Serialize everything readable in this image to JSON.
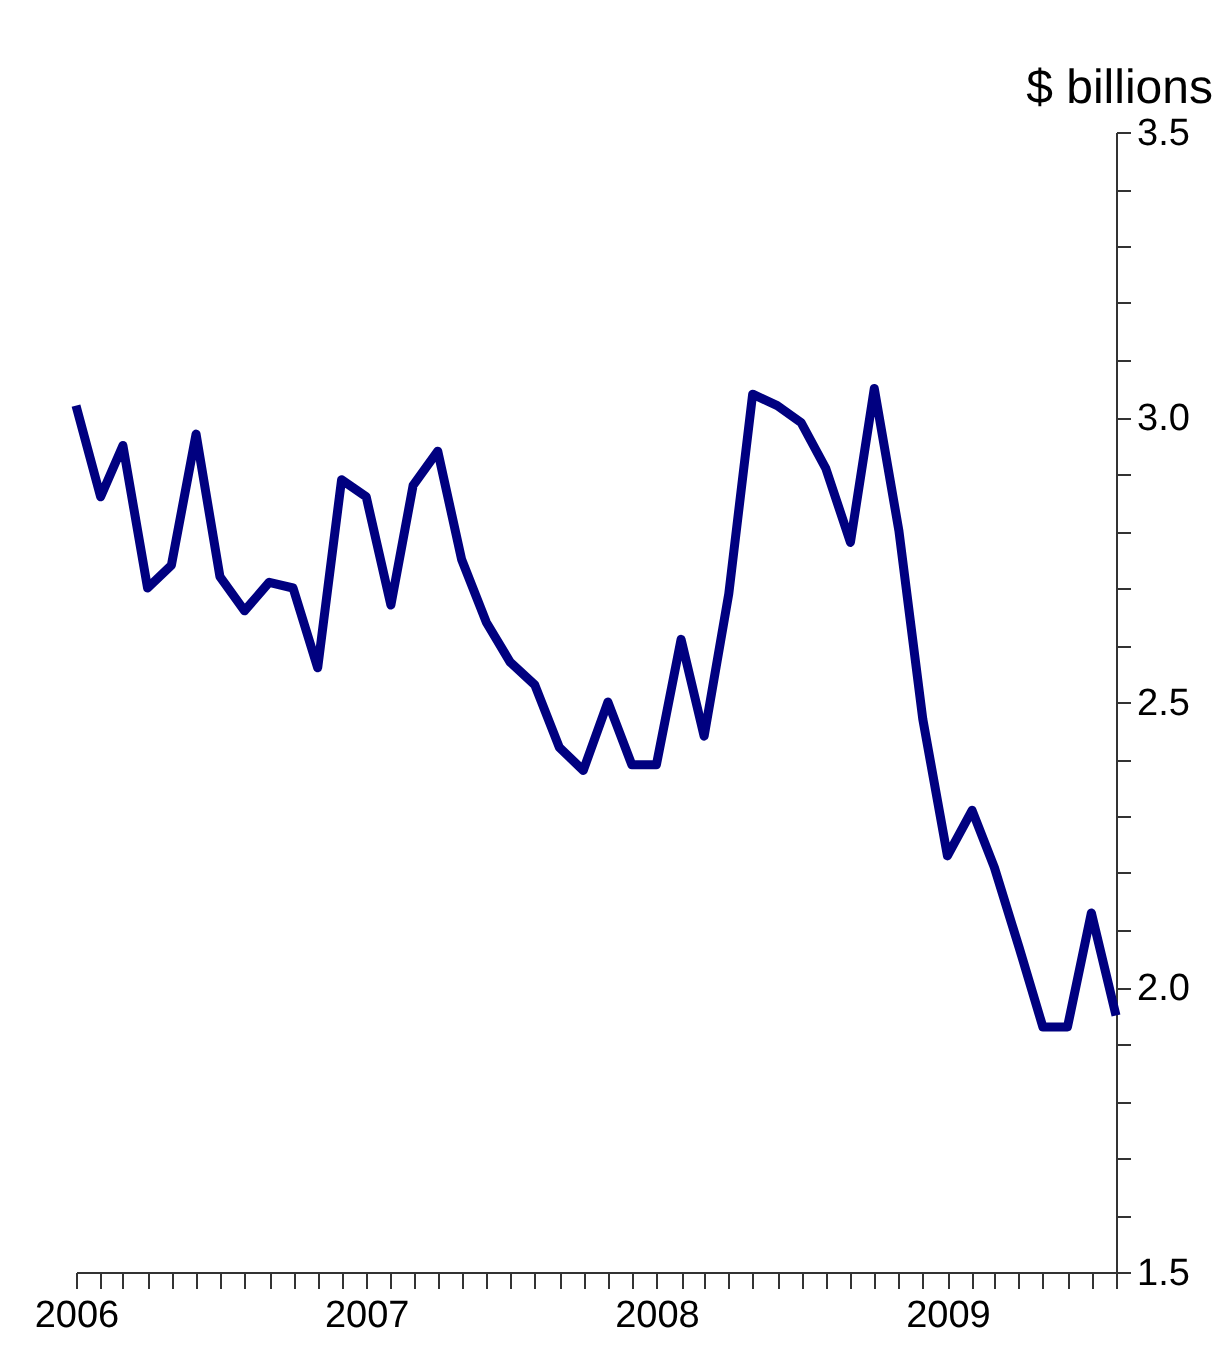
{
  "chart_data": {
    "type": "line",
    "ylabel": "$ billions",
    "x": [
      "2006-01",
      "2006-02",
      "2006-03",
      "2006-04",
      "2006-05",
      "2006-06",
      "2006-07",
      "2006-08",
      "2006-09",
      "2006-10",
      "2006-11",
      "2006-12",
      "2007-01",
      "2007-02",
      "2007-03",
      "2007-04",
      "2007-05",
      "2007-06",
      "2007-07",
      "2007-08",
      "2007-09",
      "2007-10",
      "2007-11",
      "2007-12",
      "2008-01",
      "2008-02",
      "2008-03",
      "2008-04",
      "2008-05",
      "2008-06",
      "2008-07",
      "2008-08",
      "2008-09",
      "2008-10",
      "2008-11",
      "2008-12",
      "2009-01",
      "2009-02",
      "2009-03",
      "2009-04",
      "2009-05",
      "2009-06",
      "2009-07",
      "2009-08"
    ],
    "series": [
      {
        "color": "#000080",
        "values": [
          3.02,
          2.86,
          2.95,
          2.7,
          2.74,
          2.97,
          2.72,
          2.66,
          2.71,
          2.7,
          2.56,
          2.89,
          2.86,
          2.67,
          2.88,
          2.94,
          2.75,
          2.64,
          2.57,
          2.53,
          2.42,
          2.38,
          2.5,
          2.39,
          2.39,
          2.61,
          2.44,
          2.69,
          3.04,
          3.02,
          2.99,
          2.91,
          2.78,
          3.05,
          2.8,
          2.47,
          2.23,
          2.31,
          2.21,
          2.07,
          1.93,
          1.93,
          2.13,
          1.95
        ]
      }
    ],
    "xlim": [
      "2006-01",
      "2009-08"
    ],
    "xticks": [
      {
        "value": "2006-01",
        "label": "2006"
      },
      {
        "value": "2006-02",
        "label": null
      },
      {
        "value": "2006-03",
        "label": null
      },
      {
        "value": "2006-04",
        "label": null
      },
      {
        "value": "2006-05",
        "label": null
      },
      {
        "value": "2006-06",
        "label": null
      },
      {
        "value": "2006-07",
        "label": null
      },
      {
        "value": "2006-08",
        "label": null
      },
      {
        "value": "2006-09",
        "label": null
      },
      {
        "value": "2006-10",
        "label": null
      },
      {
        "value": "2006-11",
        "label": null
      },
      {
        "value": "2006-12",
        "label": null
      },
      {
        "value": "2007-01",
        "label": "2007"
      },
      {
        "value": "2007-02",
        "label": null
      },
      {
        "value": "2007-03",
        "label": null
      },
      {
        "value": "2007-04",
        "label": null
      },
      {
        "value": "2007-05",
        "label": null
      },
      {
        "value": "2007-06",
        "label": null
      },
      {
        "value": "2007-07",
        "label": null
      },
      {
        "value": "2007-08",
        "label": null
      },
      {
        "value": "2007-09",
        "label": null
      },
      {
        "value": "2007-10",
        "label": null
      },
      {
        "value": "2007-11",
        "label": null
      },
      {
        "value": "2007-12",
        "label": null
      },
      {
        "value": "2008-01",
        "label": "2008"
      },
      {
        "value": "2008-02",
        "label": null
      },
      {
        "value": "2008-03",
        "label": null
      },
      {
        "value": "2008-04",
        "label": null
      },
      {
        "value": "2008-05",
        "label": null
      },
      {
        "value": "2008-06",
        "label": null
      },
      {
        "value": "2008-07",
        "label": null
      },
      {
        "value": "2008-08",
        "label": null
      },
      {
        "value": "2008-09",
        "label": null
      },
      {
        "value": "2008-10",
        "label": null
      },
      {
        "value": "2008-11",
        "label": null
      },
      {
        "value": "2008-12",
        "label": null
      },
      {
        "value": "2009-01",
        "label": "2009"
      },
      {
        "value": "2009-02",
        "label": null
      },
      {
        "value": "2009-03",
        "label": null
      },
      {
        "value": "2009-04",
        "label": null
      },
      {
        "value": "2009-05",
        "label": null
      },
      {
        "value": "2009-06",
        "label": null
      },
      {
        "value": "2009-07",
        "label": null
      },
      {
        "value": "2009-08",
        "label": null
      }
    ],
    "ylim": [
      1.5,
      3.5
    ],
    "yticks": [
      1.5,
      {
        "value": 1.6,
        "label": null
      },
      {
        "value": 1.7,
        "label": null
      },
      {
        "value": 1.8,
        "label": null
      },
      {
        "value": 1.9,
        "label": null
      },
      {
        "value": 2.0,
        "label": "2.0"
      },
      {
        "value": 2.1,
        "label": null
      },
      {
        "value": 2.2,
        "label": null
      },
      {
        "value": 2.3,
        "label": null
      },
      {
        "value": 2.4,
        "label": null
      },
      2.5,
      {
        "value": 2.6,
        "label": null
      },
      {
        "value": 2.7,
        "label": null
      },
      {
        "value": 2.8,
        "label": null
      },
      {
        "value": 2.9,
        "label": null
      },
      {
        "value": 3.0,
        "label": "3.0"
      },
      {
        "value": 3.1,
        "label": null
      },
      {
        "value": 3.2,
        "label": null
      },
      {
        "value": 3.3,
        "label": null
      },
      {
        "value": 3.4,
        "label": null
      },
      3.5
    ],
    "grid": false,
    "marker": "none",
    "line_style": "solid"
  }
}
